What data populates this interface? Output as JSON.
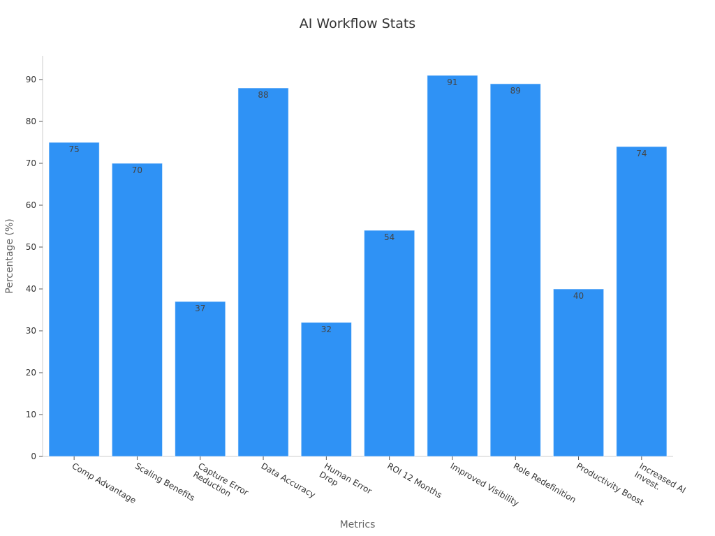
{
  "chart_data": {
    "type": "bar",
    "title": "AI Workflow Stats",
    "xlabel": "Metrics",
    "ylabel": "Percentage (%)",
    "categories": [
      [
        "Comp Advantage"
      ],
      [
        "Scaling Benefits"
      ],
      [
        "Capture Error",
        "Reduction"
      ],
      [
        "Data Accuracy"
      ],
      [
        "Human Error",
        "Drop"
      ],
      [
        "ROI 12 Months"
      ],
      [
        "Improved Visibility"
      ],
      [
        "Role Redefinition"
      ],
      [
        "Productivity Boost"
      ],
      [
        "Increased AI",
        "Invest."
      ]
    ],
    "values": [
      75,
      70,
      37,
      88,
      32,
      54,
      91,
      89,
      40,
      74
    ],
    "ylim": [
      0,
      96
    ],
    "yticks": [
      0,
      10,
      20,
      30,
      40,
      50,
      60,
      70,
      80,
      90
    ],
    "bar_color": "#2f92f5",
    "grid": false,
    "legend": "none"
  }
}
